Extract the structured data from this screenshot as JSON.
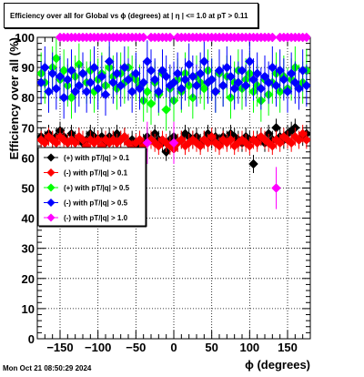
{
  "chart_data": {
    "type": "scatter",
    "title": "Efficiency over all for Global vs ϕ (degrees) at |  η | <= 1.0 at pT > 0.11",
    "xlabel": "ϕ (degrees)",
    "ylabel": "Efficiency over all (%)",
    "xlim": [
      -180,
      180
    ],
    "ylim": [
      0,
      100
    ],
    "x_ticks": [
      -150,
      -100,
      -50,
      0,
      50,
      100,
      150
    ],
    "x_tick_labels": [
      "−150",
      "−100",
      "−50",
      "0",
      "50",
      "100",
      "150"
    ],
    "y_ticks": [
      0,
      10,
      20,
      30,
      40,
      50,
      60,
      70,
      80,
      90,
      100
    ],
    "y_tick_labels": [
      "0",
      "10",
      "20",
      "30",
      "40",
      "50",
      "60",
      "70",
      "80",
      "90",
      "100"
    ],
    "grid": true,
    "legend_placement": "center-left",
    "series": [
      {
        "name": "(+) with pT/|q| > 0.1",
        "color": "#000000",
        "marker": "diamond",
        "x": [
          -175,
          -170,
          -165,
          -160,
          -155,
          -150,
          -145,
          -140,
          -135,
          -130,
          -125,
          -120,
          -115,
          -110,
          -105,
          -100,
          -95,
          -90,
          -85,
          -80,
          -75,
          -70,
          -65,
          -60,
          -55,
          -50,
          -45,
          -40,
          -35,
          -30,
          -25,
          -20,
          -15,
          -10,
          -5,
          0,
          5,
          10,
          15,
          20,
          25,
          30,
          35,
          40,
          45,
          50,
          55,
          60,
          65,
          70,
          75,
          80,
          85,
          90,
          95,
          100,
          105,
          110,
          115,
          120,
          125,
          130,
          135,
          140,
          145,
          150,
          155,
          160,
          165,
          170,
          175
        ],
        "y": [
          67,
          66,
          68,
          66,
          67,
          69,
          67,
          65,
          68,
          66,
          67,
          65,
          66,
          68,
          67,
          66,
          67,
          65,
          67,
          66,
          68,
          66,
          67,
          65,
          66,
          64,
          66,
          65,
          67,
          66,
          68,
          66,
          65,
          62,
          66,
          67,
          65,
          66,
          68,
          67,
          66,
          67,
          65,
          66,
          68,
          66,
          67,
          65,
          67,
          66,
          68,
          67,
          66,
          65,
          67,
          66,
          58,
          66,
          67,
          65,
          68,
          66,
          70,
          67,
          66,
          68,
          69,
          70,
          66,
          67,
          68
        ]
      },
      {
        "name": "(-) with pT/|q| > 0.1",
        "color": "#ff0000",
        "marker": "diamond",
        "x": [
          -175,
          -170,
          -165,
          -160,
          -155,
          -150,
          -145,
          -140,
          -135,
          -130,
          -125,
          -120,
          -115,
          -110,
          -105,
          -100,
          -95,
          -90,
          -85,
          -80,
          -75,
          -70,
          -65,
          -60,
          -55,
          -50,
          -45,
          -40,
          -35,
          -30,
          -25,
          -20,
          -15,
          -10,
          -5,
          0,
          5,
          10,
          15,
          20,
          25,
          30,
          35,
          40,
          45,
          50,
          55,
          60,
          65,
          70,
          75,
          80,
          85,
          90,
          95,
          100,
          105,
          110,
          115,
          120,
          125,
          130,
          135,
          140,
          145,
          150,
          155,
          160,
          165,
          170,
          175
        ],
        "y": [
          66,
          65,
          67,
          66,
          65,
          67,
          66,
          65,
          66,
          65,
          67,
          66,
          64,
          66,
          65,
          66,
          64,
          66,
          65,
          66,
          65,
          66,
          67,
          65,
          63,
          65,
          66,
          64,
          65,
          66,
          65,
          64,
          66,
          65,
          64,
          63,
          65,
          66,
          64,
          65,
          66,
          65,
          64,
          66,
          65,
          67,
          65,
          64,
          66,
          65,
          66,
          64,
          65,
          66,
          65,
          64,
          66,
          65,
          67,
          66,
          65,
          64,
          66,
          65,
          67,
          66,
          65,
          67,
          66,
          68,
          66
        ]
      },
      {
        "name": "(+) with pT/|q| > 0.5",
        "color": "#00ff00",
        "marker": "diamond",
        "x": [
          -175,
          -170,
          -165,
          -160,
          -155,
          -150,
          -145,
          -140,
          -135,
          -130,
          -125,
          -120,
          -115,
          -110,
          -105,
          -100,
          -95,
          -90,
          -85,
          -80,
          -75,
          -70,
          -65,
          -60,
          -55,
          -50,
          -45,
          -40,
          -35,
          -30,
          -25,
          -20,
          -15,
          -10,
          -5,
          0,
          5,
          10,
          15,
          20,
          25,
          30,
          35,
          40,
          45,
          50,
          55,
          60,
          65,
          70,
          75,
          80,
          85,
          90,
          95,
          100,
          105,
          110,
          115,
          120,
          125,
          130,
          135,
          140,
          145,
          150,
          155,
          160,
          165,
          170,
          175
        ],
        "y": [
          88,
          85,
          82,
          90,
          93,
          86,
          89,
          84,
          80,
          87,
          91,
          88,
          85,
          89,
          82,
          86,
          88,
          84,
          90,
          87,
          83,
          88,
          85,
          90,
          87,
          86,
          84,
          79,
          82,
          78,
          85,
          81,
          88,
          76,
          83,
          79,
          86,
          82,
          88,
          84,
          80,
          87,
          85,
          83,
          89,
          86,
          82,
          88,
          84,
          87,
          80,
          85,
          89,
          83,
          86,
          88,
          82,
          84,
          79,
          86,
          81,
          85,
          88,
          82,
          87,
          83,
          86,
          90,
          84,
          85,
          89
        ]
      },
      {
        "name": "(-) with pT/|q| > 0.5",
        "color": "#0000ff",
        "marker": "diamond",
        "x": [
          -175,
          -170,
          -165,
          -160,
          -155,
          -150,
          -145,
          -140,
          -135,
          -130,
          -125,
          -120,
          -115,
          -110,
          -105,
          -100,
          -95,
          -90,
          -85,
          -80,
          -75,
          -70,
          -65,
          -60,
          -55,
          -50,
          -45,
          -40,
          -35,
          -30,
          -25,
          -20,
          -15,
          -10,
          -5,
          0,
          5,
          10,
          15,
          20,
          25,
          30,
          35,
          40,
          45,
          50,
          55,
          60,
          65,
          70,
          75,
          80,
          85,
          90,
          95,
          100,
          105,
          110,
          115,
          120,
          125,
          130,
          135,
          140,
          145,
          150,
          155,
          160,
          165,
          170,
          175
        ],
        "y": [
          85,
          90,
          82,
          88,
          83,
          87,
          80,
          86,
          89,
          82,
          84,
          88,
          82,
          85,
          90,
          83,
          87,
          81,
          92,
          85,
          88,
          84,
          90,
          86,
          82,
          88,
          83,
          85,
          92,
          89,
          86,
          82,
          89,
          87,
          84,
          85,
          88,
          83,
          86,
          91,
          87,
          84,
          88,
          92,
          85,
          86,
          82,
          89,
          84,
          90,
          87,
          83,
          85,
          89,
          84,
          92,
          86,
          88,
          83,
          87,
          85,
          90,
          84,
          89,
          86,
          82,
          88,
          85,
          83,
          89,
          84
        ]
      },
      {
        "name": "(-) with pT/|q| > 1.0",
        "color": "#ff00ff",
        "marker": "diamond",
        "x": [
          -150,
          -145,
          -140,
          -135,
          -130,
          -125,
          -120,
          -115,
          -110,
          -105,
          -100,
          -95,
          -90,
          -85,
          -80,
          -75,
          -70,
          -65,
          -60,
          -55,
          -50,
          -45,
          -40,
          -35,
          -30,
          -25,
          -20,
          -15,
          -10,
          -5,
          0,
          5,
          10,
          15,
          20,
          25,
          30,
          35,
          40,
          45,
          50,
          55,
          60,
          65,
          70,
          75,
          80,
          85,
          90,
          95,
          100,
          105,
          110,
          115,
          120,
          125,
          130,
          135,
          140,
          145,
          150,
          155,
          160,
          165,
          170,
          175
        ],
        "y": [
          100,
          100,
          100,
          100,
          100,
          100,
          100,
          100,
          100,
          100,
          100,
          100,
          100,
          100,
          100,
          100,
          100,
          100,
          100,
          100,
          100,
          100,
          100,
          65,
          100,
          100,
          100,
          100,
          100,
          100,
          65,
          100,
          100,
          100,
          100,
          100,
          100,
          100,
          100,
          100,
          100,
          100,
          100,
          100,
          100,
          100,
          100,
          100,
          100,
          100,
          100,
          100,
          100,
          100,
          100,
          100,
          100,
          50,
          100,
          100,
          100,
          100,
          100,
          100,
          100,
          100
        ]
      }
    ]
  },
  "timestamp": "Mon Oct 21 08:50:29 2024"
}
